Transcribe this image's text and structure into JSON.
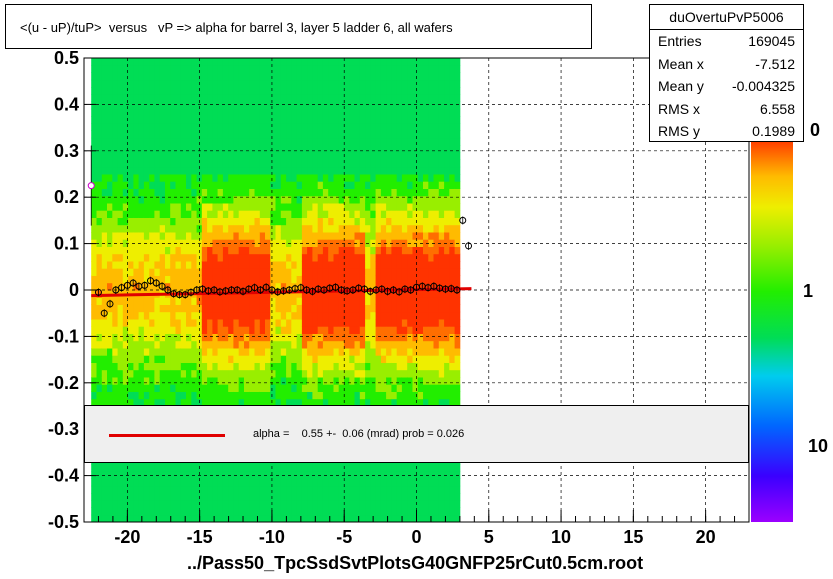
{
  "title": "<(u - uP)/tuP>  versus   vP => alpha for barrel 3, layer 5 ladder 6, all wafers",
  "footer": "../Pass50_TpcSsdSvtPlotsG40GNFP25rCut0.5cm.root",
  "stats": {
    "name": "duOvertuPvP5006",
    "rows": [
      {
        "key": "Entries",
        "value": "169045"
      },
      {
        "key": "Mean x",
        "value": "-7.512"
      },
      {
        "key": "Mean y",
        "value": "-0.004325"
      },
      {
        "key": "RMS x",
        "value": "6.558"
      },
      {
        "key": "RMS y",
        "value": "0.1989"
      }
    ]
  },
  "fit_legend": "alpha =    0.55 +-  0.06 (mrad) prob = 0.026",
  "zaxis_labels": [
    "0",
    "1",
    "10"
  ],
  "colors": {
    "fit_line": "#e00000",
    "profile_marker": "#000000",
    "grid": "#000000"
  },
  "chart_data": {
    "type": "heatmap",
    "title": "<(u - uP)/tuP>  versus   vP => alpha for barrel 3, layer 5 ladder 6, all wafers",
    "xlim": [
      -23,
      23
    ],
    "ylim": [
      -0.5,
      0.5
    ],
    "xticks": [
      -20,
      -15,
      -10,
      -5,
      0,
      5,
      10,
      15,
      20
    ],
    "yticks": [
      -0.5,
      -0.4,
      -0.3,
      -0.2,
      -0.1,
      0,
      0.1,
      0.2,
      0.3,
      0.4,
      0.5
    ],
    "ytick_labels": [
      "-0.5",
      "-0.4",
      "-0.3",
      "-0.2",
      "-0.1",
      "0",
      "0.1",
      "0.2",
      "0.3",
      "0.4",
      "0.5"
    ],
    "grid": true,
    "log_z": true,
    "data_x_range": [
      -22.5,
      3.0
    ],
    "profile": {
      "x": [
        -22.0,
        -21.6,
        -21.2,
        -20.8,
        -20.4,
        -20.0,
        -19.6,
        -19.2,
        -18.8,
        -18.4,
        -18.0,
        -17.6,
        -17.2,
        -16.8,
        -16.4,
        -16.0,
        -15.6,
        -15.2,
        -14.8,
        -14.4,
        -14.0,
        -13.6,
        -13.2,
        -12.8,
        -12.4,
        -12.0,
        -11.6,
        -11.2,
        -10.8,
        -10.4,
        -10.0,
        -9.6,
        -9.2,
        -8.8,
        -8.4,
        -8.0,
        -7.6,
        -7.2,
        -6.8,
        -6.4,
        -6.0,
        -5.6,
        -5.2,
        -4.8,
        -4.4,
        -4.0,
        -3.6,
        -3.2,
        -2.8,
        -2.4,
        -2.0,
        -1.6,
        -1.2,
        -0.8,
        -0.4,
        0.0,
        0.4,
        0.8,
        1.2,
        1.6,
        2.0,
        2.4,
        2.8,
        3.2,
        3.6
      ],
      "y": [
        -0.005,
        -0.05,
        -0.03,
        0.0,
        0.005,
        0.01,
        0.015,
        0.008,
        0.01,
        0.02,
        0.015,
        0.008,
        0.0,
        -0.008,
        -0.01,
        -0.01,
        -0.005,
        0.0,
        0.002,
        -0.002,
        0.0,
        -0.004,
        -0.002,
        0.0,
        0.0,
        -0.003,
        0.002,
        0.005,
        0.0,
        0.006,
        0.0,
        -0.004,
        -0.002,
        0.0,
        0.003,
        0.005,
        0.0,
        -0.003,
        0.002,
        0.0,
        0.004,
        0.006,
        0.0,
        -0.002,
        0.0,
        0.004,
        0.002,
        -0.003,
        0.0,
        0.002,
        -0.003,
        0.0,
        -0.004,
        0.002,
        0.0,
        0.006,
        0.008,
        0.005,
        0.008,
        0.004,
        0.002,
        0.003,
        0.0,
        0.15,
        0.095
      ]
    },
    "outlier_points": [
      {
        "x": -22.5,
        "y": 0.225
      }
    ],
    "fit_line": {
      "x": [
        -22.5,
        3.8
      ],
      "y": [
        -0.012,
        0.003
      ]
    }
  }
}
